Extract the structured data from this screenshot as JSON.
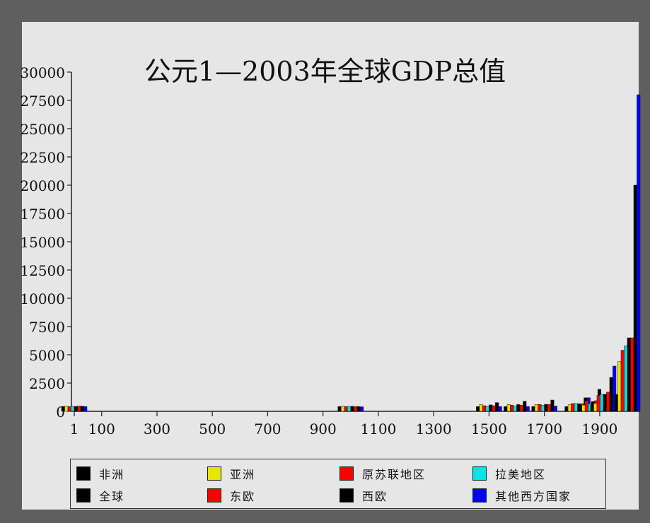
{
  "chart_data": {
    "type": "bar",
    "title": "公元1—2003年全球GDP总值",
    "xlabel": "",
    "ylabel": "",
    "ylim": [
      0,
      30000
    ],
    "yticks": [
      "0",
      "2500",
      "5000",
      "7500",
      "10000",
      "12500",
      "15000",
      "17500",
      "20000",
      "22500",
      "25000",
      "27500",
      "30000"
    ],
    "xticks": [
      "1",
      "100",
      "300",
      "500",
      "700",
      "900",
      "1100",
      "1300",
      "1500",
      "1700",
      "1900"
    ],
    "groups": [
      {
        "year": "1",
        "values": [
          430,
          450,
          420,
          440,
          430,
          470,
          450,
          430
        ]
      },
      {
        "year": "1000",
        "values": [
          420,
          450,
          420,
          430,
          440,
          420,
          420,
          400
        ]
      },
      {
        "year": "1500",
        "values": [
          420,
          600,
          500,
          420,
          570,
          500,
          770,
          420
        ]
      },
      {
        "year": "1600",
        "values": [
          420,
          600,
          550,
          450,
          600,
          550,
          890,
          420
        ]
      },
      {
        "year": "1700",
        "values": [
          420,
          600,
          610,
          530,
          620,
          600,
          1000,
          470
        ]
      },
      {
        "year": "1820",
        "values": [
          420,
          580,
          690,
          690,
          670,
          680,
          1200,
          1200
        ]
      },
      {
        "year": "1870",
        "values": [
          500,
          550,
          940,
          680,
          870,
          940,
          1950,
          1200
        ]
      },
      {
        "year": "1913",
        "values": [
          600,
          700,
          1400,
          1500,
          1500,
          1700,
          3000,
          4000
        ]
      },
      {
        "year": "2003",
        "values": [
          1500,
          4400,
          5400,
          5800,
          6500,
          6500,
          20000,
          28000
        ]
      }
    ],
    "series": [
      {
        "name": "非洲",
        "color": "#000000"
      },
      {
        "name": "亚洲",
        "color": "#e6e600"
      },
      {
        "name": "原苏联地区",
        "color": "#ff0000"
      },
      {
        "name": "拉美地区",
        "color": "#00e6e6"
      },
      {
        "name": "全球",
        "color": "#000000"
      },
      {
        "name": "东欧",
        "color": "#ff0000"
      },
      {
        "name": "西欧",
        "color": "#000000"
      },
      {
        "name": "其他西方国家",
        "color": "#0000ff"
      }
    ]
  }
}
